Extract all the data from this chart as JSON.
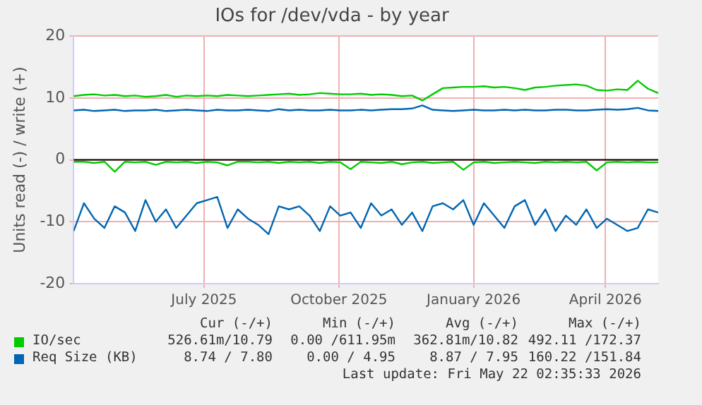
{
  "chart_data": {
    "type": "line",
    "title": "IOs for /dev/vda - by year",
    "ylabel": "Units read (-) / write (+)",
    "x": [
      "2025-04-18",
      "2025-04-25",
      "2025-05-02",
      "2025-05-09",
      "2025-05-16",
      "2025-05-23",
      "2025-05-30",
      "2025-06-06",
      "2025-06-13",
      "2025-06-20",
      "2025-06-27",
      "2025-07-04",
      "2025-07-11",
      "2025-07-18",
      "2025-07-25",
      "2025-08-01",
      "2025-08-08",
      "2025-08-15",
      "2025-08-22",
      "2025-08-29",
      "2025-09-05",
      "2025-09-12",
      "2025-09-19",
      "2025-09-26",
      "2025-10-03",
      "2025-10-10",
      "2025-10-17",
      "2025-10-24",
      "2025-10-31",
      "2025-11-07",
      "2025-11-14",
      "2025-11-21",
      "2025-11-28",
      "2025-12-05",
      "2025-12-12",
      "2025-12-19",
      "2025-12-26",
      "2026-01-02",
      "2026-01-09",
      "2026-01-16",
      "2026-01-23",
      "2026-01-30",
      "2026-02-06",
      "2026-02-13",
      "2026-02-20",
      "2026-02-27",
      "2026-03-06",
      "2026-03-13",
      "2026-03-20",
      "2026-03-27",
      "2026-04-03",
      "2026-04-10",
      "2026-04-17",
      "2026-04-24",
      "2026-05-01",
      "2026-05-08",
      "2026-05-15",
      "2026-05-22"
    ],
    "series": [
      {
        "name": "IO/sec",
        "color": "#00cc00",
        "values": [
          10.3,
          10.5,
          10.6,
          10.4,
          10.5,
          10.3,
          10.4,
          10.2,
          10.3,
          10.5,
          10.2,
          10.4,
          10.3,
          10.4,
          10.3,
          10.5,
          10.4,
          10.3,
          10.4,
          10.5,
          10.6,
          10.7,
          10.5,
          10.6,
          10.8,
          10.7,
          10.6,
          10.6,
          10.7,
          10.5,
          10.6,
          10.5,
          10.3,
          10.4,
          9.6,
          10.6,
          11.6,
          11.7,
          11.8,
          11.8,
          11.9,
          11.7,
          11.8,
          11.6,
          11.3,
          11.7,
          11.8,
          12.0,
          12.1,
          12.2,
          12.0,
          11.3,
          11.2,
          11.4,
          11.3,
          12.8,
          11.5,
          10.8
        ]
      },
      {
        "color": "#00cc00",
        "values": [
          -0.3,
          -0.3,
          -0.5,
          -0.3,
          -1.9,
          -0.3,
          -0.4,
          -0.3,
          -0.8,
          -0.3,
          -0.4,
          -0.3,
          -0.5,
          -0.3,
          -0.4,
          -0.9,
          -0.3,
          -0.3,
          -0.4,
          -0.3,
          -0.5,
          -0.3,
          -0.4,
          -0.3,
          -0.5,
          -0.3,
          -0.4,
          -1.5,
          -0.3,
          -0.4,
          -0.5,
          -0.3,
          -0.7,
          -0.4,
          -0.3,
          -0.5,
          -0.4,
          -0.3,
          -1.6,
          -0.4,
          -0.3,
          -0.5,
          -0.4,
          -0.3,
          -0.4,
          -0.5,
          -0.3,
          -0.4,
          -0.3,
          -0.4,
          -0.3,
          -1.7,
          -0.4,
          -0.3,
          -0.4,
          -0.3,
          -0.4,
          -0.4
        ]
      },
      {
        "name": "Req Size (KB)",
        "color": "#0066b3",
        "values": [
          8.0,
          8.1,
          7.9,
          8.0,
          8.1,
          7.9,
          8.0,
          8.0,
          8.1,
          7.9,
          8.0,
          8.1,
          8.0,
          7.9,
          8.1,
          8.0,
          8.0,
          8.1,
          8.0,
          7.9,
          8.2,
          8.0,
          8.1,
          8.0,
          8.0,
          8.1,
          8.0,
          8.0,
          8.1,
          8.0,
          8.1,
          8.2,
          8.2,
          8.3,
          8.8,
          8.1,
          8.0,
          7.9,
          8.0,
          8.1,
          8.0,
          8.0,
          8.1,
          8.0,
          8.1,
          8.0,
          8.0,
          8.1,
          8.1,
          8.0,
          8.0,
          8.1,
          8.2,
          8.1,
          8.2,
          8.4,
          8.0,
          7.9
        ]
      },
      {
        "color": "#0066b3",
        "values": [
          -11.5,
          -7.0,
          -9.5,
          -11.0,
          -7.5,
          -8.5,
          -11.5,
          -6.5,
          -10.0,
          -8.0,
          -11.0,
          -9.0,
          -7.0,
          -6.5,
          -6.0,
          -11.0,
          -8.0,
          -9.5,
          -10.5,
          -12.0,
          -7.5,
          -8.0,
          -7.5,
          -9.0,
          -11.5,
          -7.5,
          -9.0,
          -8.5,
          -11.0,
          -7.0,
          -9.0,
          -8.0,
          -10.5,
          -8.5,
          -11.5,
          -7.5,
          -7.0,
          -8.0,
          -6.5,
          -10.5,
          -7.0,
          -9.0,
          -11.0,
          -7.5,
          -6.5,
          -10.5,
          -8.0,
          -11.5,
          -9.0,
          -10.5,
          -8.0,
          -11.0,
          -9.5,
          -10.5,
          -11.5,
          -11.0,
          -8.0,
          -8.5
        ]
      }
    ],
    "xlim": [
      "2025-04-18",
      "2026-05-22"
    ],
    "xticks": [
      {
        "value": "2025-07-16",
        "label": "July 2025"
      },
      {
        "value": "2025-10-16",
        "label": "October 2025"
      },
      {
        "value": "2026-01-16",
        "label": "January 2026"
      },
      {
        "value": "2026-04-16",
        "label": "April 2026"
      }
    ],
    "ylim": [
      -20,
      20
    ],
    "yticks": [
      -20,
      -10,
      0,
      10,
      20
    ],
    "ref_lines": [
      {
        "axis": "y",
        "value": 0,
        "color": "#000000"
      }
    ],
    "grid": true,
    "legend": "bottom",
    "marker": "none",
    "line_style": "solid",
    "annotations": [
      "Cur (-/+)",
      "Min (-/+)",
      "Avg (-/+)",
      "Max (-/+)",
      "526.61m/10.79",
      "0.00 /611.95m",
      "362.81m/10.82",
      "492.11 /172.37",
      "8.74 / 7.80",
      "0.00 / 4.95",
      "8.87 / 7.95",
      "160.22 /151.84",
      "Last update: Fri May 22 02:35:33 2026"
    ]
  }
}
